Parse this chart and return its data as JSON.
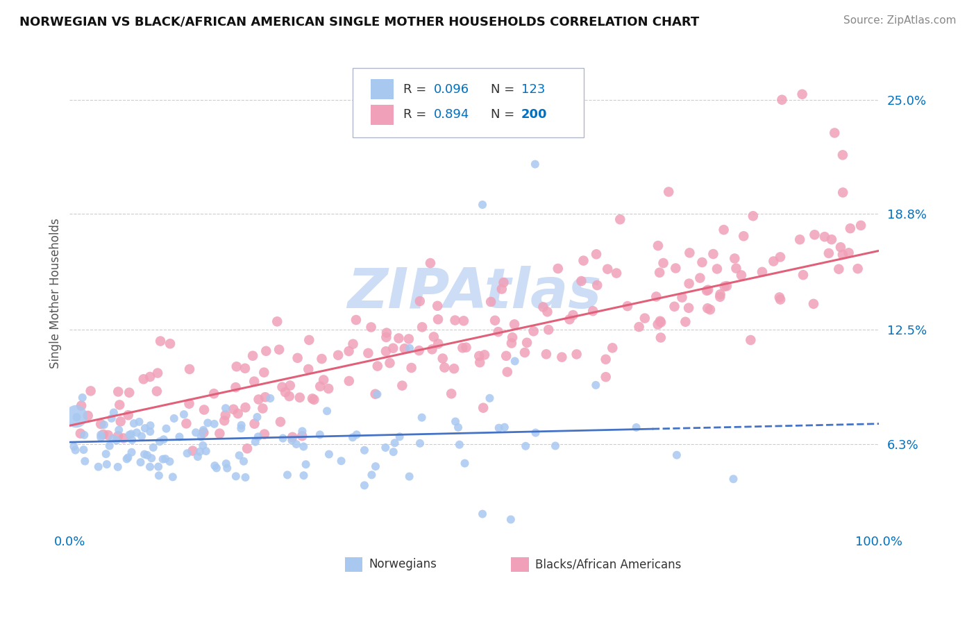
{
  "title": "NORWEGIAN VS BLACK/AFRICAN AMERICAN SINGLE MOTHER HOUSEHOLDS CORRELATION CHART",
  "source": "Source: ZipAtlas.com",
  "ylabel": "Single Mother Households",
  "ytick_vals": [
    0.063,
    0.125,
    0.188,
    0.25
  ],
  "ytick_labels": [
    "6.3%",
    "12.5%",
    "18.8%",
    "25.0%"
  ],
  "xlim": [
    0.0,
    1.0
  ],
  "ylim": [
    0.015,
    0.275
  ],
  "norwegian": {
    "R": 0.096,
    "N": 123,
    "color": "#a8c8f0",
    "line_color": "#4472c4",
    "label": "Norwegians"
  },
  "black": {
    "R": 0.894,
    "N": 200,
    "color": "#f0a0b8",
    "line_color": "#e0607a",
    "label": "Blacks/African Americans"
  },
  "legend_text_color": "#0070c0",
  "label_color": "#0070c0",
  "watermark": "ZIPAtlas",
  "watermark_color": "#ccddf5",
  "background_color": "#ffffff",
  "grid_color": "#cccccc",
  "title_color": "#111111"
}
